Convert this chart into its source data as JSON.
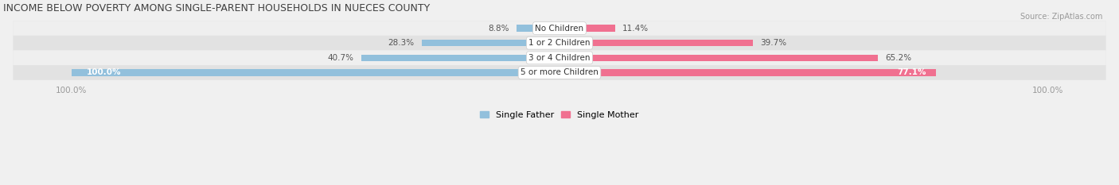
{
  "title": "INCOME BELOW POVERTY AMONG SINGLE-PARENT HOUSEHOLDS IN NUECES COUNTY",
  "source": "Source: ZipAtlas.com",
  "categories": [
    "No Children",
    "1 or 2 Children",
    "3 or 4 Children",
    "5 or more Children"
  ],
  "single_father": [
    8.8,
    28.3,
    40.7,
    100.0
  ],
  "single_mother": [
    11.4,
    39.7,
    65.2,
    77.1
  ],
  "max_val": 100.0,
  "father_color": "#92C0DC",
  "mother_color": "#F07090",
  "row_bg_light": "#EFEFEF",
  "row_bg_dark": "#E2E2E2",
  "label_color": "#555555",
  "title_color": "#404040",
  "axis_label_color": "#999999",
  "legend_father": "Single Father",
  "legend_mother": "Single Mother",
  "figsize": [
    14.06,
    2.33
  ],
  "dpi": 100,
  "bar_height": 0.45
}
